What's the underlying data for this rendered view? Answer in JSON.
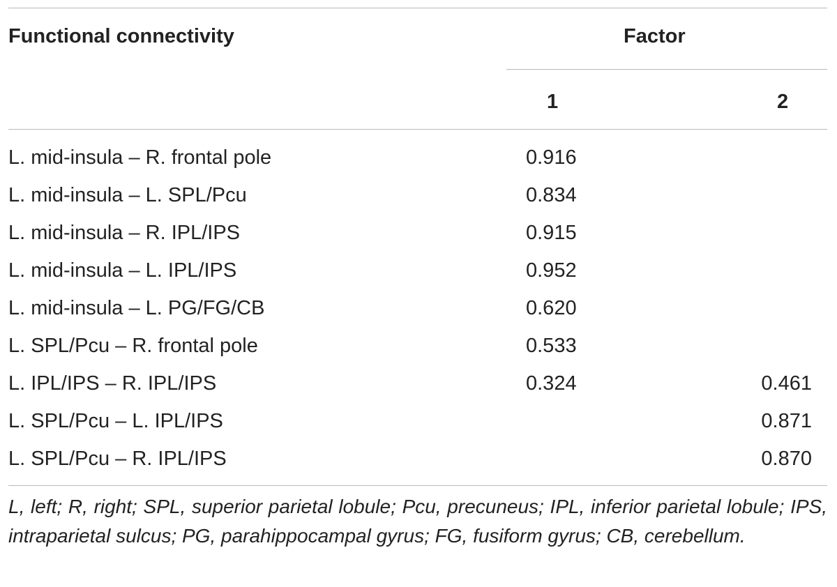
{
  "table": {
    "header": {
      "label_column": "Functional connectivity",
      "group": "Factor",
      "factor_1": "1",
      "factor_2": "2"
    },
    "rows": [
      {
        "label": "L. mid-insula – R. frontal pole",
        "f1": "0.916",
        "f2": ""
      },
      {
        "label": "L. mid-insula – L. SPL/Pcu",
        "f1": "0.834",
        "f2": ""
      },
      {
        "label": "L. mid-insula – R. IPL/IPS",
        "f1": "0.915",
        "f2": ""
      },
      {
        "label": "L. mid-insula – L. IPL/IPS",
        "f1": "0.952",
        "f2": ""
      },
      {
        "label": "L. mid-insula – L. PG/FG/CB",
        "f1": "0.620",
        "f2": ""
      },
      {
        "label": "L. SPL/Pcu – R. frontal pole",
        "f1": "0.533",
        "f2": ""
      },
      {
        "label": "L. IPL/IPS – R. IPL/IPS",
        "f1": "0.324",
        "f2": "0.461"
      },
      {
        "label": "L. SPL/Pcu – L. IPL/IPS",
        "f1": "",
        "f2": "0.871"
      },
      {
        "label": "L. SPL/Pcu – R. IPL/IPS",
        "f1": "",
        "f2": "0.870"
      }
    ],
    "footnote": "L, left; R, right; SPL, superior parietal lobule; Pcu, precuneus; IPL, inferior parietal lobule; IPS, intraparietal sulcus; PG, parahippocampal gyrus; FG, fusiform gyrus; CB, cerebellum."
  }
}
